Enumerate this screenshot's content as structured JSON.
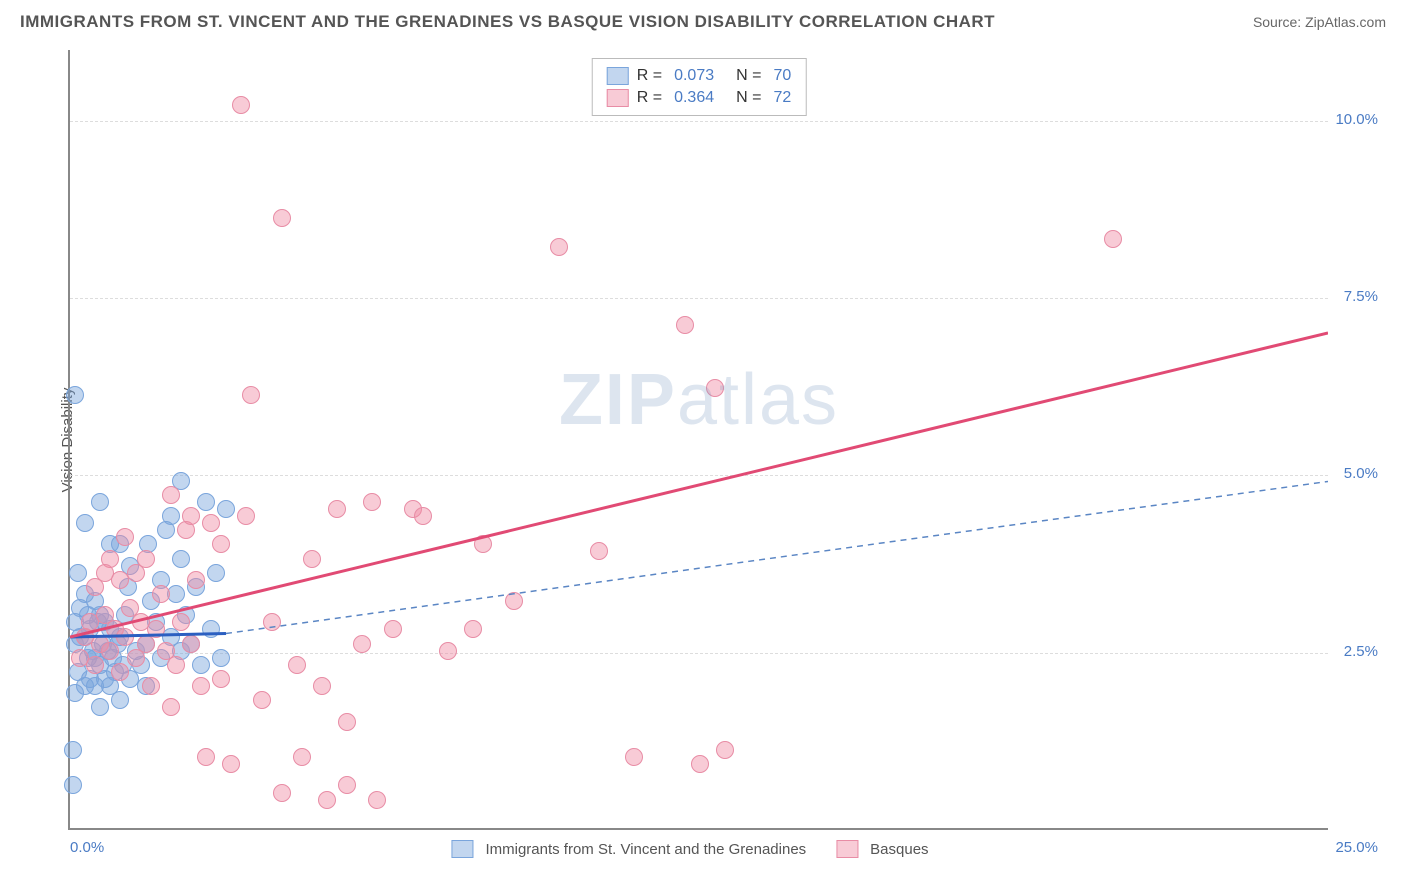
{
  "title": "IMMIGRANTS FROM ST. VINCENT AND THE GRENADINES VS BASQUE VISION DISABILITY CORRELATION CHART",
  "source": "Source: ZipAtlas.com",
  "watermark": {
    "prefix": "ZIP",
    "suffix": "atlas"
  },
  "chart": {
    "type": "scatter",
    "ylabel": "Vision Disability",
    "xlim": [
      0,
      25
    ],
    "ylim": [
      0,
      11
    ],
    "xtick_left": "0.0%",
    "xtick_right": "25.0%",
    "yticks": [
      {
        "v": 2.5,
        "label": "2.5%"
      },
      {
        "v": 5.0,
        "label": "5.0%"
      },
      {
        "v": 7.5,
        "label": "7.5%"
      },
      {
        "v": 10.0,
        "label": "10.0%"
      }
    ],
    "grid_color": "#dddddd",
    "background_color": "#ffffff",
    "series": [
      {
        "name": "Immigrants from St. Vincent and the Grenadines",
        "fill": "rgba(120,165,220,0.45)",
        "stroke": "#7aa5dc",
        "R": "0.073",
        "N": "70",
        "trend": {
          "x1": 0,
          "y1": 2.7,
          "x2": 3.1,
          "y2": 2.75,
          "color": "#2b5fc1",
          "width": 3,
          "dash": ""
        },
        "trend_ext": {
          "x1": 3.1,
          "y1": 2.75,
          "x2": 25,
          "y2": 4.9,
          "color": "#5b86c4",
          "width": 1.5,
          "dash": "6,5"
        },
        "points": [
          [
            0.05,
            1.1
          ],
          [
            0.1,
            1.9
          ],
          [
            0.15,
            2.2
          ],
          [
            0.1,
            2.6
          ],
          [
            0.2,
            2.7
          ],
          [
            0.1,
            2.9
          ],
          [
            0.2,
            3.1
          ],
          [
            0.15,
            3.6
          ],
          [
            0.3,
            2.0
          ],
          [
            0.35,
            2.4
          ],
          [
            0.3,
            2.7
          ],
          [
            0.35,
            3.0
          ],
          [
            0.3,
            3.3
          ],
          [
            0.4,
            2.1
          ],
          [
            0.45,
            2.5
          ],
          [
            0.4,
            2.8
          ],
          [
            0.5,
            2.0
          ],
          [
            0.5,
            2.4
          ],
          [
            0.55,
            2.9
          ],
          [
            0.5,
            3.2
          ],
          [
            0.6,
            1.7
          ],
          [
            0.6,
            2.3
          ],
          [
            0.65,
            2.6
          ],
          [
            0.6,
            3.0
          ],
          [
            0.7,
            2.1
          ],
          [
            0.75,
            2.5
          ],
          [
            0.7,
            2.9
          ],
          [
            0.8,
            2.0
          ],
          [
            0.85,
            2.4
          ],
          [
            0.8,
            2.8
          ],
          [
            0.9,
            2.2
          ],
          [
            0.95,
            2.6
          ],
          [
            1.0,
            1.8
          ],
          [
            1.05,
            2.3
          ],
          [
            1.0,
            2.7
          ],
          [
            1.1,
            3.0
          ],
          [
            1.15,
            3.4
          ],
          [
            1.2,
            2.1
          ],
          [
            1.3,
            2.5
          ],
          [
            1.2,
            3.7
          ],
          [
            1.4,
            2.3
          ],
          [
            1.5,
            2.0
          ],
          [
            1.5,
            2.6
          ],
          [
            1.55,
            4.0
          ],
          [
            1.6,
            3.2
          ],
          [
            1.7,
            2.9
          ],
          [
            1.8,
            2.4
          ],
          [
            1.8,
            3.5
          ],
          [
            1.9,
            4.2
          ],
          [
            2.0,
            2.7
          ],
          [
            2.0,
            4.4
          ],
          [
            2.1,
            3.3
          ],
          [
            2.2,
            2.5
          ],
          [
            2.2,
            3.8
          ],
          [
            2.2,
            4.9
          ],
          [
            2.3,
            3.0
          ],
          [
            2.4,
            2.6
          ],
          [
            2.5,
            3.4
          ],
          [
            2.6,
            2.3
          ],
          [
            2.7,
            4.6
          ],
          [
            2.8,
            2.8
          ],
          [
            2.9,
            3.6
          ],
          [
            3.0,
            2.4
          ],
          [
            3.1,
            4.5
          ],
          [
            0.1,
            6.1
          ],
          [
            0.6,
            4.6
          ],
          [
            0.8,
            4.0
          ],
          [
            0.3,
            4.3
          ],
          [
            1.0,
            4.0
          ],
          [
            0.05,
            0.6
          ]
        ]
      },
      {
        "name": "Basques",
        "fill": "rgba(240,140,165,0.45)",
        "stroke": "#e88ca5",
        "R": "0.364",
        "N": "72",
        "trend": {
          "x1": 0,
          "y1": 2.7,
          "x2": 25,
          "y2": 7.0,
          "color": "#e14a74",
          "width": 3,
          "dash": ""
        },
        "points": [
          [
            0.2,
            2.4
          ],
          [
            0.3,
            2.7
          ],
          [
            0.4,
            2.9
          ],
          [
            0.5,
            2.3
          ],
          [
            0.6,
            2.6
          ],
          [
            0.7,
            3.0
          ],
          [
            0.8,
            2.5
          ],
          [
            0.9,
            2.8
          ],
          [
            1.0,
            2.2
          ],
          [
            1.1,
            2.7
          ],
          [
            1.2,
            3.1
          ],
          [
            1.3,
            2.4
          ],
          [
            1.4,
            2.9
          ],
          [
            1.5,
            2.6
          ],
          [
            1.6,
            2.0
          ],
          [
            1.7,
            2.8
          ],
          [
            1.8,
            3.3
          ],
          [
            1.9,
            2.5
          ],
          [
            2.0,
            1.7
          ],
          [
            2.1,
            2.3
          ],
          [
            2.2,
            2.9
          ],
          [
            2.3,
            4.2
          ],
          [
            2.4,
            2.6
          ],
          [
            2.5,
            3.5
          ],
          [
            2.6,
            2.0
          ],
          [
            2.8,
            4.3
          ],
          [
            3.0,
            2.1
          ],
          [
            3.2,
            0.9
          ],
          [
            3.4,
            10.2
          ],
          [
            3.5,
            4.4
          ],
          [
            3.6,
            6.1
          ],
          [
            3.8,
            1.8
          ],
          [
            4.0,
            2.9
          ],
          [
            4.2,
            0.5
          ],
          [
            4.2,
            8.6
          ],
          [
            4.5,
            2.3
          ],
          [
            4.6,
            1.0
          ],
          [
            4.8,
            3.8
          ],
          [
            5.0,
            2.0
          ],
          [
            5.1,
            0.4
          ],
          [
            5.3,
            4.5
          ],
          [
            5.5,
            1.5
          ],
          [
            5.5,
            0.6
          ],
          [
            5.8,
            2.6
          ],
          [
            6.0,
            4.6
          ],
          [
            6.1,
            0.4
          ],
          [
            6.4,
            2.8
          ],
          [
            6.8,
            4.5
          ],
          [
            7.0,
            4.4
          ],
          [
            7.5,
            2.5
          ],
          [
            8.0,
            2.8
          ],
          [
            8.2,
            4.0
          ],
          [
            8.8,
            3.2
          ],
          [
            9.7,
            8.2
          ],
          [
            10.5,
            3.9
          ],
          [
            11.2,
            1.0
          ],
          [
            12.2,
            7.1
          ],
          [
            12.5,
            0.9
          ],
          [
            12.8,
            6.2
          ],
          [
            13.0,
            1.1
          ],
          [
            20.7,
            8.3
          ],
          [
            2.0,
            4.7
          ],
          [
            2.7,
            1.0
          ],
          [
            3.0,
            4.0
          ],
          [
            1.5,
            3.8
          ],
          [
            0.8,
            3.8
          ],
          [
            1.0,
            3.5
          ],
          [
            1.3,
            3.6
          ],
          [
            2.4,
            4.4
          ],
          [
            0.5,
            3.4
          ],
          [
            0.7,
            3.6
          ],
          [
            1.1,
            4.1
          ]
        ]
      }
    ]
  }
}
